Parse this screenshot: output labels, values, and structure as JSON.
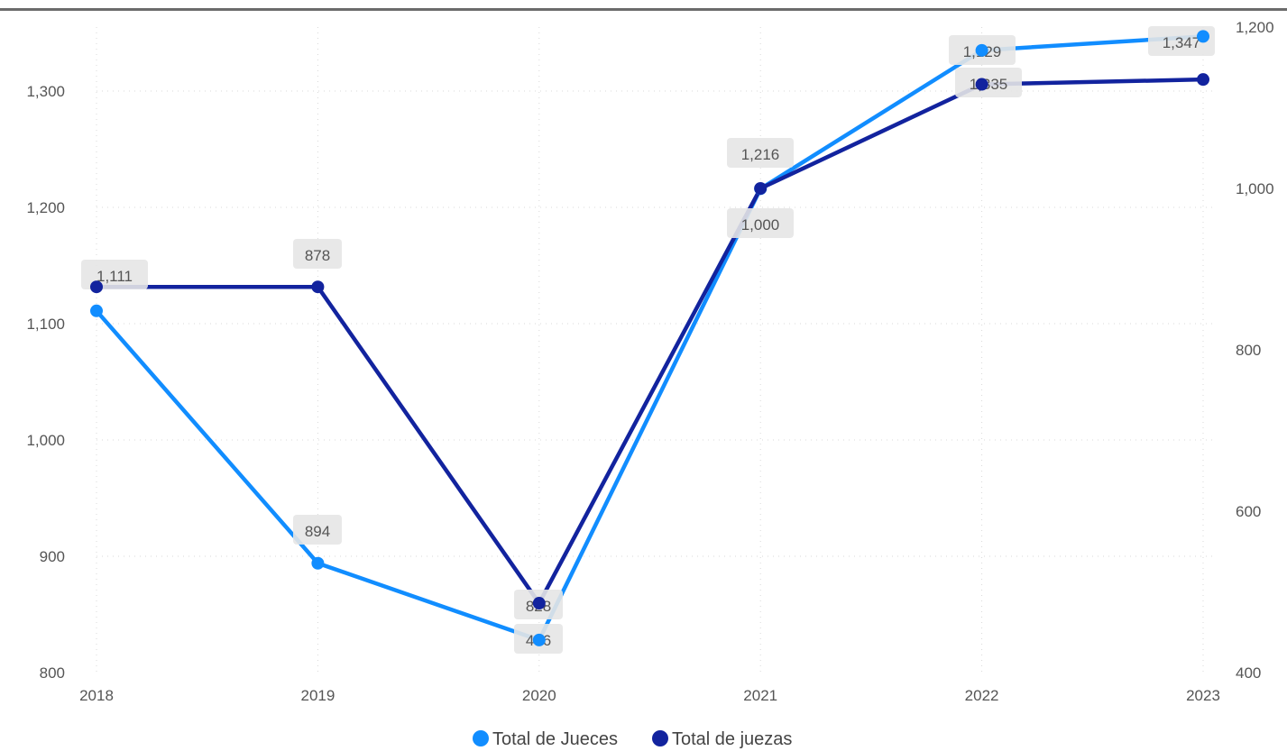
{
  "chart_data": {
    "type": "line",
    "categories": [
      "2018",
      "2019",
      "2020",
      "2021",
      "2022",
      "2023"
    ],
    "series": [
      {
        "name": "Total de Jueces",
        "axis": "left",
        "color": "#118dff",
        "values": [
          1111,
          894,
          828,
          1216,
          1335,
          1347
        ],
        "labels": [
          "1,111",
          "894",
          "828",
          "1,216",
          "1,335",
          "1,347"
        ]
      },
      {
        "name": "Total de juezas",
        "axis": "right",
        "color": "#12239e",
        "values": [
          878,
          878,
          486,
          1000,
          1129,
          1135
        ],
        "labels": [
          "878",
          "878",
          "486",
          "1,000",
          "1,129",
          "1,135"
        ]
      }
    ],
    "left_axis": {
      "ylim": [
        800,
        1350
      ],
      "ticks": [
        800,
        900,
        1000,
        1100,
        1200,
        1300
      ],
      "tick_labels": [
        "800",
        "900",
        "1,000",
        "1,100",
        "1,200",
        "1,300"
      ]
    },
    "right_axis": {
      "ylim": [
        400,
        1200
      ],
      "ticks": [
        400,
        600,
        800,
        1000,
        1200
      ],
      "tick_labels": [
        "400",
        "600",
        "800",
        "1,000",
        "1,200"
      ]
    },
    "grid": true,
    "legend_position": "bottom-center"
  }
}
